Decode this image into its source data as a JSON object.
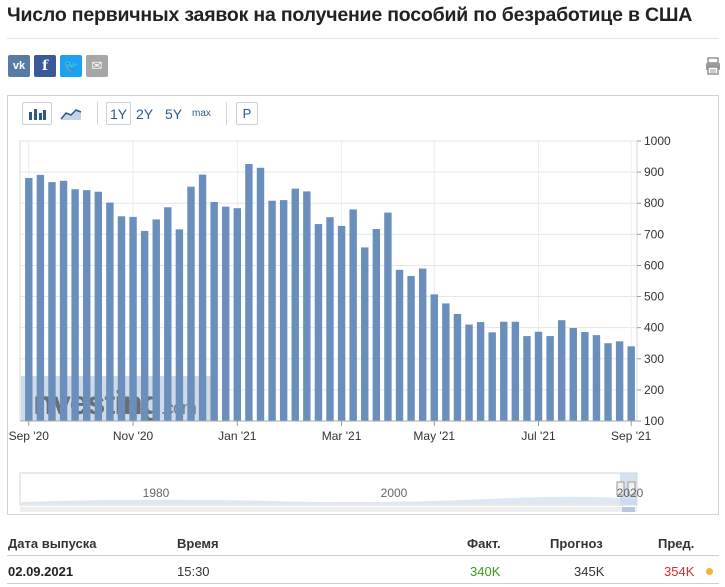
{
  "page": {
    "title": "Число первичных заявок на получение пособий по безработице в США"
  },
  "share": [
    {
      "name": "vk-icon",
      "glyph": "vk",
      "color": "#587ba6"
    },
    {
      "name": "facebook-icon",
      "glyph": "f",
      "color": "#3b5998"
    },
    {
      "name": "twitter-icon",
      "glyph": "🐦",
      "color": "#1da1f2"
    },
    {
      "name": "email-icon",
      "glyph": "✉",
      "color": "#a7a7a7"
    }
  ],
  "toolbar": {
    "periods": [
      {
        "label": "1Y",
        "selected": true
      },
      {
        "label": "2Y",
        "selected": false
      },
      {
        "label": "5Y",
        "selected": false
      }
    ],
    "max_label": "max",
    "p_label": "P"
  },
  "chart_data": {
    "type": "bar",
    "title": "",
    "xlabel": "",
    "ylabel": "",
    "ylim": [
      100,
      1000
    ],
    "y_ticks": [
      100,
      200,
      300,
      400,
      500,
      600,
      700,
      800,
      900,
      1000
    ],
    "y_axis_position": "right",
    "grid": true,
    "bar_color": "#6a8fbd",
    "x_tick_labels": [
      "Sep '20",
      "Nov '20",
      "Jan '21",
      "Mar '21",
      "May '21",
      "Jul '21",
      "Sep '21"
    ],
    "x_tick_bar_index": [
      0,
      9,
      18,
      27,
      35,
      44,
      52
    ],
    "values": [
      881,
      891,
      868,
      872,
      845,
      842,
      837,
      802,
      758,
      756,
      711,
      748,
      787,
      716,
      853,
      892,
      804,
      789,
      784,
      926,
      914,
      808,
      810,
      847,
      838,
      733,
      755,
      727,
      780,
      658,
      717,
      770,
      586,
      566,
      590,
      507,
      478,
      444,
      410,
      418,
      385,
      419,
      419,
      373,
      387,
      373,
      424,
      399,
      386,
      376,
      350,
      356,
      340
    ],
    "watermark": "Investing.com",
    "navigator_labels": [
      "1980",
      "2000",
      "2020"
    ]
  },
  "table": {
    "headers": {
      "date": "Дата выпуска",
      "time": "Время",
      "actual": "Факт.",
      "forecast": "Прогноз",
      "previous": "Пред."
    },
    "rows": [
      {
        "date": "02.09.2021",
        "time": "15:30",
        "actual": "340K",
        "forecast": "345K",
        "previous": "354K",
        "actual_color": "#3c9c1a",
        "previous_color": "#d92c2c",
        "dot_color": "#f0b23a"
      }
    ]
  }
}
